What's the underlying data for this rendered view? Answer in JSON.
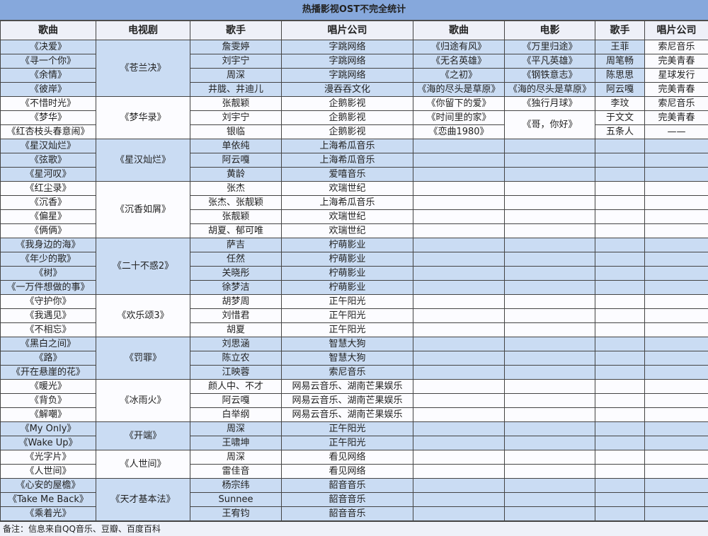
{
  "title": "热播影视OST不完全统计",
  "headers": {
    "tv": [
      "歌曲",
      "电视剧",
      "歌手",
      "唱片公司"
    ],
    "movie": [
      "歌曲",
      "电影",
      "歌手",
      "唱片公司"
    ]
  },
  "tv_groups": [
    {
      "drama": "《苍兰决》",
      "songs": [
        {
          "song": "《决爱》",
          "singer": "詹雯婷",
          "label": "字跳网络"
        },
        {
          "song": "《寻一个你》",
          "singer": "刘宇宁",
          "label": "字跳网络"
        },
        {
          "song": "《余情》",
          "singer": "周深",
          "label": "字跳网络"
        },
        {
          "song": "《彼岸》",
          "singer": "井胧、井迪儿",
          "label": "漫吞吞文化"
        }
      ]
    },
    {
      "drama": "《梦华录》",
      "songs": [
        {
          "song": "《不惜时光》",
          "singer": "张靓颖",
          "label": "企鹅影视"
        },
        {
          "song": "《梦华》",
          "singer": "刘宇宁",
          "label": "企鹅影视"
        },
        {
          "song": "《红杏枝头春意闹》",
          "singer": "银临",
          "label": "企鹅影视"
        }
      ]
    },
    {
      "drama": "《星汉灿烂》",
      "songs": [
        {
          "song": "《星汉灿烂》",
          "singer": "单依纯",
          "label": "上海希瓜音乐"
        },
        {
          "song": "《弦歌》",
          "singer": "阿云嘎",
          "label": "上海希瓜音乐"
        },
        {
          "song": "《星河叹》",
          "singer": "黄龄",
          "label": "爱嘻音乐"
        }
      ]
    },
    {
      "drama": "《沉香如屑》",
      "songs": [
        {
          "song": "《红尘录》",
          "singer": "张杰",
          "label": "欢瑞世纪"
        },
        {
          "song": "《沉香》",
          "singer": "张杰、张靓颖",
          "label": "上海希瓜音乐"
        },
        {
          "song": "《偏星》",
          "singer": "张靓颖",
          "label": "欢瑞世纪"
        },
        {
          "song": "《俩俩》",
          "singer": "胡夏、郁可唯",
          "label": "欢瑞世纪"
        }
      ]
    },
    {
      "drama": "《二十不惑2》",
      "songs": [
        {
          "song": "《我身边的海》",
          "singer": "萨吉",
          "label": "柠萌影业"
        },
        {
          "song": "《年少的歌》",
          "singer": "任然",
          "label": "柠萌影业"
        },
        {
          "song": "《树》",
          "singer": "关晓彤",
          "label": "柠萌影业"
        },
        {
          "song": "《一万件想做的事》",
          "singer": "徐梦洁",
          "label": "柠萌影业"
        }
      ]
    },
    {
      "drama": "《欢乐颂3》",
      "songs": [
        {
          "song": "《守护你》",
          "singer": "胡梦周",
          "label": "正午阳光"
        },
        {
          "song": "《我遇见》",
          "singer": "刘惜君",
          "label": "正午阳光"
        },
        {
          "song": "《不相忘》",
          "singer": "胡夏",
          "label": "正午阳光"
        }
      ]
    },
    {
      "drama": "《罚罪》",
      "songs": [
        {
          "song": "《黑白之间》",
          "singer": "刘思涵",
          "label": "智慧大狗"
        },
        {
          "song": "《路》",
          "singer": "陈立农",
          "label": "智慧大狗"
        },
        {
          "song": "《开在悬崖的花》",
          "singer": "江映蓉",
          "label": "索尼音乐"
        }
      ]
    },
    {
      "drama": "《冰雨火》",
      "songs": [
        {
          "song": "《暖光》",
          "singer": "颜人中、不才",
          "label": "网易云音乐、湖南芒果娱乐"
        },
        {
          "song": "《背负》",
          "singer": "阿云嘎",
          "label": "网易云音乐、湖南芒果娱乐"
        },
        {
          "song": "《解嘲》",
          "singer": "白举纲",
          "label": "网易云音乐、湖南芒果娱乐"
        }
      ]
    },
    {
      "drama": "《开端》",
      "songs": [
        {
          "song": "《My Only》",
          "singer": "周深",
          "label": "正午阳光"
        },
        {
          "song": "《Wake Up》",
          "singer": "王啸坤",
          "label": "正午阳光"
        }
      ]
    },
    {
      "drama": "《人世间》",
      "songs": [
        {
          "song": "《光字片》",
          "singer": "周深",
          "label": "看见网络"
        },
        {
          "song": "《人世间》",
          "singer": "雷佳音",
          "label": "看见网络"
        }
      ]
    },
    {
      "drama": "《天才基本法》",
      "songs": [
        {
          "song": "《心安的屋檐》",
          "singer": "杨宗纬",
          "label": "韶音音乐"
        },
        {
          "song": "《Take Me Back》",
          "singer": "Sunnee",
          "label": "韶音音乐"
        },
        {
          "song": "《乘着光》",
          "singer": "王宥钧",
          "label": "韶音音乐"
        }
      ]
    }
  ],
  "movie_rows": [
    {
      "song": "《归途有风》",
      "movie": "《万里归途》",
      "singer": "王菲",
      "label": "索尼音乐"
    },
    {
      "song": "《无名英雄》",
      "movie": "《平凡英雄》",
      "singer": "周笔畅",
      "label": "完美青春"
    },
    {
      "song": "《之初》",
      "movie": "《钢铁意志》",
      "singer": "陈思思",
      "label": "星球发行"
    },
    {
      "song": "《海的尽头是草原》",
      "movie": "《海的尽头是草原》",
      "singer": "阿云嘎",
      "label": "完美青春"
    },
    {
      "song": "《你留下的爱》",
      "movie": "《独行月球》",
      "singer": "李玟",
      "label": "索尼音乐"
    },
    {
      "song": "《时间里的家》",
      "movie": "《哥，你好》",
      "singer": "于文文",
      "label": "完美青春",
      "movie_span": 2
    },
    {
      "song": "《恋曲1980》",
      "singer": "五条人",
      "label": "——"
    }
  ],
  "footer": "备注：信息来自QQ音乐、豆瓣、百度百科"
}
